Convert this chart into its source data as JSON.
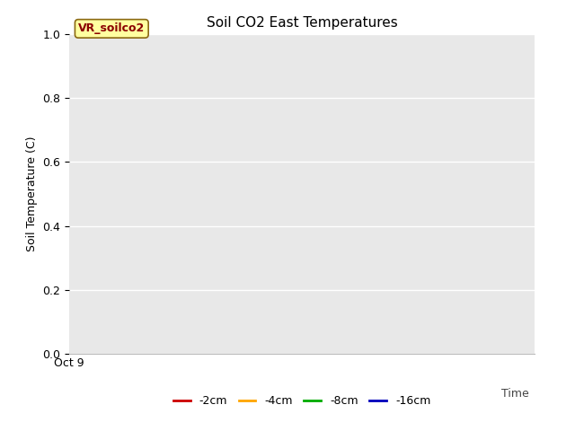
{
  "title": "Soil CO2 East Temperatures",
  "ylabel": "Soil Temperature (C)",
  "xlabel": "Time",
  "ylim": [
    0.0,
    1.0
  ],
  "yticks": [
    0.0,
    0.2,
    0.4,
    0.6,
    0.8,
    1.0
  ],
  "x_tick_label": "Oct 9",
  "annotation_text": "VR_soilco2",
  "bg_color": "#e8e8e8",
  "legend_entries": [
    {
      "label": "-2cm",
      "color": "#cc0000"
    },
    {
      "label": "-4cm",
      "color": "#ffa500"
    },
    {
      "label": "-8cm",
      "color": "#00aa00"
    },
    {
      "label": "-16cm",
      "color": "#0000bb"
    }
  ],
  "figsize": [
    6.4,
    4.8
  ],
  "dpi": 100,
  "title_fontsize": 11,
  "axis_fontsize": 9,
  "legend_fontsize": 9
}
